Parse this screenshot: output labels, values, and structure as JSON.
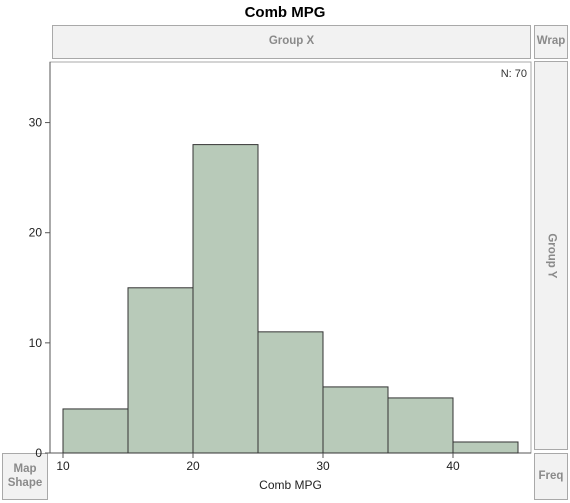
{
  "title": "Comb MPG",
  "drop_zones": {
    "group_x": "Group X",
    "wrap": "Wrap",
    "group_y": "Group Y",
    "map_shape_line1": "Map",
    "map_shape_line2": "Shape",
    "freq": "Freq"
  },
  "colors": {
    "bar_fill": "#b8cab9",
    "bar_stroke": "#333333",
    "zone_text": "#8a8a8a"
  },
  "chart_data": {
    "type": "bar",
    "subtype": "histogram",
    "bins": [
      {
        "start": 10,
        "end": 15,
        "count": 4
      },
      {
        "start": 15,
        "end": 20,
        "count": 15
      },
      {
        "start": 20,
        "end": 25,
        "count": 28
      },
      {
        "start": 25,
        "end": 30,
        "count": 11
      },
      {
        "start": 30,
        "end": 35,
        "count": 6
      },
      {
        "start": 35,
        "end": 40,
        "count": 5
      },
      {
        "start": 40,
        "end": 45,
        "count": 1
      }
    ],
    "title": "Comb MPG",
    "xlabel": "Comb MPG",
    "ylabel": "",
    "annotation": "N: 70",
    "xlim": [
      9,
      46
    ],
    "ylim": [
      0,
      35.5
    ],
    "x_ticks": [
      10,
      20,
      30,
      40
    ],
    "y_ticks": [
      0,
      10,
      20,
      30
    ],
    "grid": false,
    "legend": "none"
  }
}
